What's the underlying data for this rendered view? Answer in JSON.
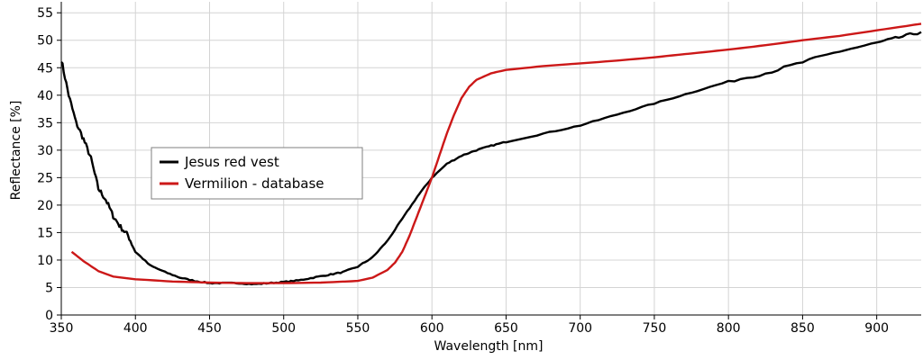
{
  "chart_data": {
    "type": "line",
    "title": "",
    "xlabel": "Wavelength [nm]",
    "ylabel": "Reflectance [%]",
    "xlim": [
      350,
      930
    ],
    "ylim": [
      0,
      57
    ],
    "xticks": [
      350,
      400,
      450,
      500,
      550,
      600,
      650,
      700,
      750,
      800,
      850,
      900
    ],
    "yticks": [
      0,
      5,
      10,
      15,
      20,
      25,
      30,
      35,
      40,
      45,
      50,
      55
    ],
    "grid": true,
    "legend_position": "left",
    "series": [
      {
        "name": "Jesus red vest",
        "color": "#000000",
        "x": [
          350,
          355,
          360,
          365,
          370,
          375,
          380,
          385,
          390,
          395,
          400,
          410,
          420,
          430,
          440,
          450,
          460,
          470,
          480,
          490,
          500,
          510,
          520,
          530,
          540,
          550,
          560,
          570,
          580,
          590,
          600,
          610,
          620,
          630,
          640,
          650,
          675,
          700,
          725,
          750,
          775,
          800,
          825,
          850,
          875,
          900,
          915,
          930
        ],
        "y": [
          46.5,
          40,
          35,
          32,
          28.5,
          23,
          21,
          18,
          16,
          14.5,
          11.5,
          9,
          7.8,
          6.8,
          6.2,
          5.8,
          5.8,
          5.8,
          5.6,
          5.8,
          6.0,
          6.3,
          6.8,
          7.3,
          7.8,
          8.8,
          10.5,
          13.5,
          17.5,
          21.5,
          25,
          27.5,
          29,
          30,
          30.8,
          31.5,
          33,
          34.5,
          36.5,
          38.5,
          40.5,
          42.5,
          44,
          46,
          48,
          49.5,
          50.5,
          51.5
        ]
      },
      {
        "name": "Vermilion - database",
        "color": "#cc1818",
        "x": [
          357,
          365,
          375,
          385,
          400,
          425,
          450,
          475,
          500,
          525,
          550,
          560,
          570,
          575,
          580,
          585,
          590,
          595,
          600,
          605,
          610,
          615,
          620,
          625,
          630,
          640,
          650,
          675,
          700,
          725,
          750,
          775,
          800,
          825,
          850,
          875,
          900,
          930
        ],
        "y": [
          11.5,
          9.8,
          8.0,
          7.0,
          6.5,
          6.1,
          5.9,
          5.8,
          5.8,
          5.9,
          6.2,
          6.8,
          8.2,
          9.5,
          11.5,
          14.5,
          18,
          21.5,
          25,
          29,
          33,
          36.5,
          39.5,
          41.5,
          42.8,
          44,
          44.6,
          45.3,
          45.8,
          46.3,
          46.9,
          47.6,
          48.3,
          49.1,
          50,
          50.8,
          51.8,
          53
        ]
      }
    ]
  }
}
